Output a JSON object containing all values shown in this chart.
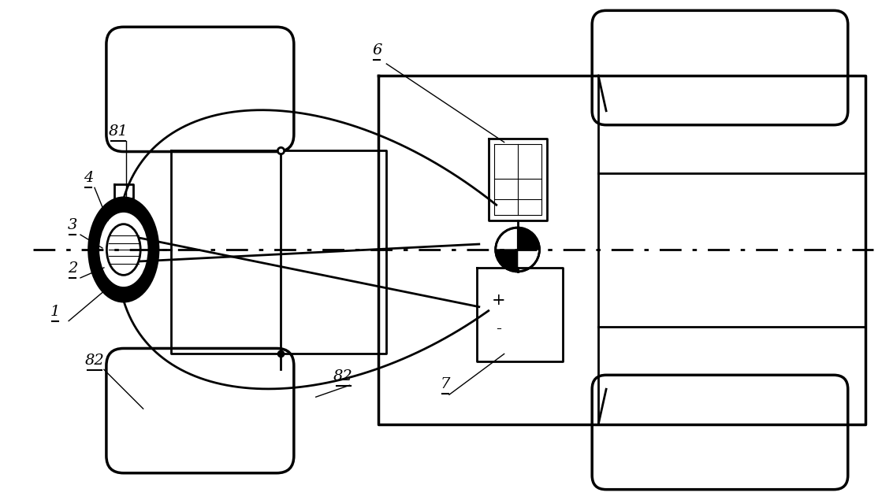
{
  "bg_color": "#ffffff",
  "lw": 2.0,
  "lw_thick": 2.5,
  "fig_w": 11.33,
  "fig_h": 6.35
}
